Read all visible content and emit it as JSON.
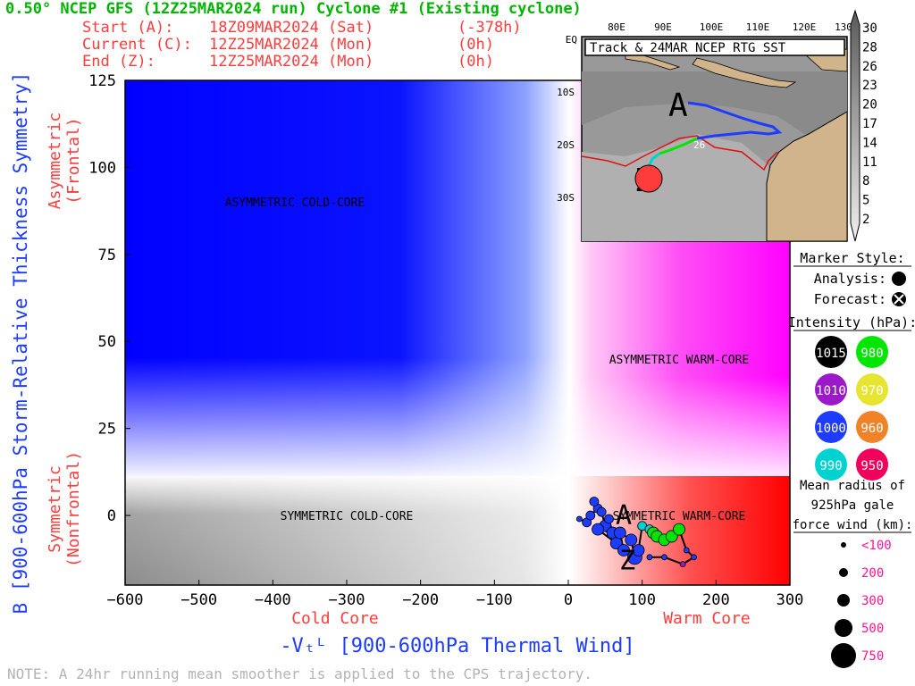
{
  "header": {
    "title": "0.50° NCEP GFS (12Z25MAR2024 run) Cyclone #1 (Existing cyclone)",
    "start_label": "Start (A):",
    "start_value": "18Z09MAR2024 (Sat)",
    "start_offset": "(-378h)",
    "current_label": "Current (C):",
    "current_value": "12Z25MAR2024 (Mon)",
    "current_offset": "(0h)",
    "end_label": "End (Z):",
    "end_value": "12Z25MAR2024 (Mon)",
    "end_offset": "(0h)"
  },
  "colors": {
    "title": "#00b400",
    "header": "#ff3c3c",
    "axis_title": "#1e3cff",
    "note": "#b4b4b4",
    "pink_text": "#ff1493"
  },
  "axes": {
    "ylabel": "B [900-600hPa Storm-Relative Thickness Symmetry]",
    "xlabel": "-Vₜᴸ [900-600hPa Thermal Wind]",
    "x_left_label": "Cold Core",
    "x_right_label": "Warm Core",
    "y_top_label_1": "Asymmetric",
    "y_top_label_2": "(Frontal)",
    "y_bottom_label_1": "Symmetric",
    "y_bottom_label_2": "(Nonfrontal)"
  },
  "quadrants": {
    "asym_cold": "ASYMMETRIC COLD-CORE",
    "asym_warm": "ASYMMETRIC WARM-CORE",
    "sym_cold": "SYMMETRIC COLD-CORE",
    "sym_warm": "SYMMETRIC WARM-CORE"
  },
  "note": "NOTE:  A 24hr running mean smoother is applied to the CPS trajectory.",
  "inset": {
    "title": "Track & 24MAR NCEP RTG SST",
    "lon_labels": [
      "80E",
      "90E",
      "100E",
      "110E",
      "120E",
      "130"
    ],
    "lat_labels": [
      "EQ",
      "10S",
      "20S",
      "30S"
    ],
    "marker_26": "26",
    "start_letter": "A",
    "end_letter": "Z"
  },
  "colorbar": {
    "labels": [
      "30",
      "28",
      "26",
      "23",
      "20",
      "17",
      "14",
      "11",
      "8",
      "5",
      "2"
    ]
  },
  "legend": {
    "marker_style_title": "Marker Style:",
    "analysis_label": "Analysis:",
    "forecast_label": "Forecast:",
    "intensity_title": "Intensity (hPa):",
    "intensity": [
      {
        "label": "1015",
        "color": "#000000"
      },
      {
        "label": "980",
        "color": "#00e600"
      },
      {
        "label": "1010",
        "color": "#9b19c8"
      },
      {
        "label": "970",
        "color": "#e6e632"
      },
      {
        "label": "1000",
        "color": "#1e3cff"
      },
      {
        "label": "960",
        "color": "#f08228"
      },
      {
        "label": "990",
        "color": "#00d2d2"
      },
      {
        "label": "950",
        "color": "#f0005a"
      }
    ],
    "radius_title_1": "Mean radius of",
    "radius_title_2": "925hPa gale",
    "radius_title_3": "force wind (km):",
    "radius": [
      {
        "label": "<100",
        "size": 1
      },
      {
        "label": "200",
        "size": 2
      },
      {
        "label": "300",
        "size": 3
      },
      {
        "label": "500",
        "size": 4
      },
      {
        "label": "750",
        "size": 5
      }
    ]
  },
  "chart_data": {
    "type": "scatter",
    "title": "0.50° NCEP GFS (12Z25MAR2024 run) Cyclone #1 (Existing cyclone)",
    "xlabel": "-Vₜᴸ [900-600hPa Thermal Wind]",
    "ylabel": "B [900-600hPa Storm-Relative Thickness Symmetry]",
    "xlim": [
      -600,
      300
    ],
    "ylim": [
      -20,
      125
    ],
    "xticks": [
      -600,
      -500,
      -400,
      -300,
      -200,
      -100,
      0,
      100,
      200,
      300
    ],
    "yticks": [
      0,
      25,
      50,
      75,
      100,
      125
    ],
    "grid": false,
    "trajectory": [
      {
        "x": 15,
        "y": -1,
        "color": "#1e3cff",
        "size": 1
      },
      {
        "x": 25,
        "y": -2,
        "color": "#1e3cff",
        "size": 2
      },
      {
        "x": 30,
        "y": 0,
        "color": "#1e3cff",
        "size": 2
      },
      {
        "x": 40,
        "y": 2,
        "color": "#1e3cff",
        "size": 2
      },
      {
        "x": 35,
        "y": 4,
        "color": "#1e3cff",
        "size": 2
      },
      {
        "x": 45,
        "y": 1,
        "color": "#1e3cff",
        "size": 2
      },
      {
        "x": 50,
        "y": -3,
        "color": "#1e3cff",
        "size": 3
      },
      {
        "x": 55,
        "y": -1,
        "color": "#1e3cff",
        "size": 2
      },
      {
        "x": 60,
        "y": -5,
        "color": "#1e3cff",
        "size": 3
      },
      {
        "x": 40,
        "y": -4,
        "color": "#1e3cff",
        "size": 3
      },
      {
        "x": 65,
        "y": -8,
        "color": "#1e3cff",
        "size": 3
      },
      {
        "x": 75,
        "y": -10,
        "color": "#1e3cff",
        "size": 3
      },
      {
        "x": 70,
        "y": -5,
        "color": "#1e3cff",
        "size": 3
      },
      {
        "x": 85,
        "y": -7,
        "color": "#1e3cff",
        "size": 3
      },
      {
        "x": 90,
        "y": -12,
        "color": "#1e3cff",
        "size": 4
      },
      {
        "x": 95,
        "y": -10,
        "color": "#1e3cff",
        "size": 3
      },
      {
        "x": 100,
        "y": -3,
        "color": "#00d2d2",
        "size": 2
      },
      {
        "x": 110,
        "y": -4,
        "color": "#00d2d2",
        "size": 2
      },
      {
        "x": 115,
        "y": -5,
        "color": "#00e600",
        "size": 3
      },
      {
        "x": 120,
        "y": -6,
        "color": "#00e600",
        "size": 3
      },
      {
        "x": 130,
        "y": -7,
        "color": "#00e600",
        "size": 3
      },
      {
        "x": 140,
        "y": -6,
        "color": "#00e600",
        "size": 3
      },
      {
        "x": 150,
        "y": -4,
        "color": "#00e600",
        "size": 3
      },
      {
        "x": 160,
        "y": -10,
        "color": "#1e3cff",
        "size": 1
      },
      {
        "x": 170,
        "y": -12,
        "color": "#1e3cff",
        "size": 1
      },
      {
        "x": 155,
        "y": -14,
        "color": "#9b19c8",
        "size": 1
      },
      {
        "x": 130,
        "y": -12,
        "color": "#1e3cff",
        "size": 1
      },
      {
        "x": 110,
        "y": -12,
        "color": "#1e3cff",
        "size": 1
      }
    ],
    "start_point": {
      "x": 75,
      "y": 0,
      "label": "A"
    },
    "end_point": {
      "x": 80,
      "y": -13,
      "label": "Z"
    }
  }
}
